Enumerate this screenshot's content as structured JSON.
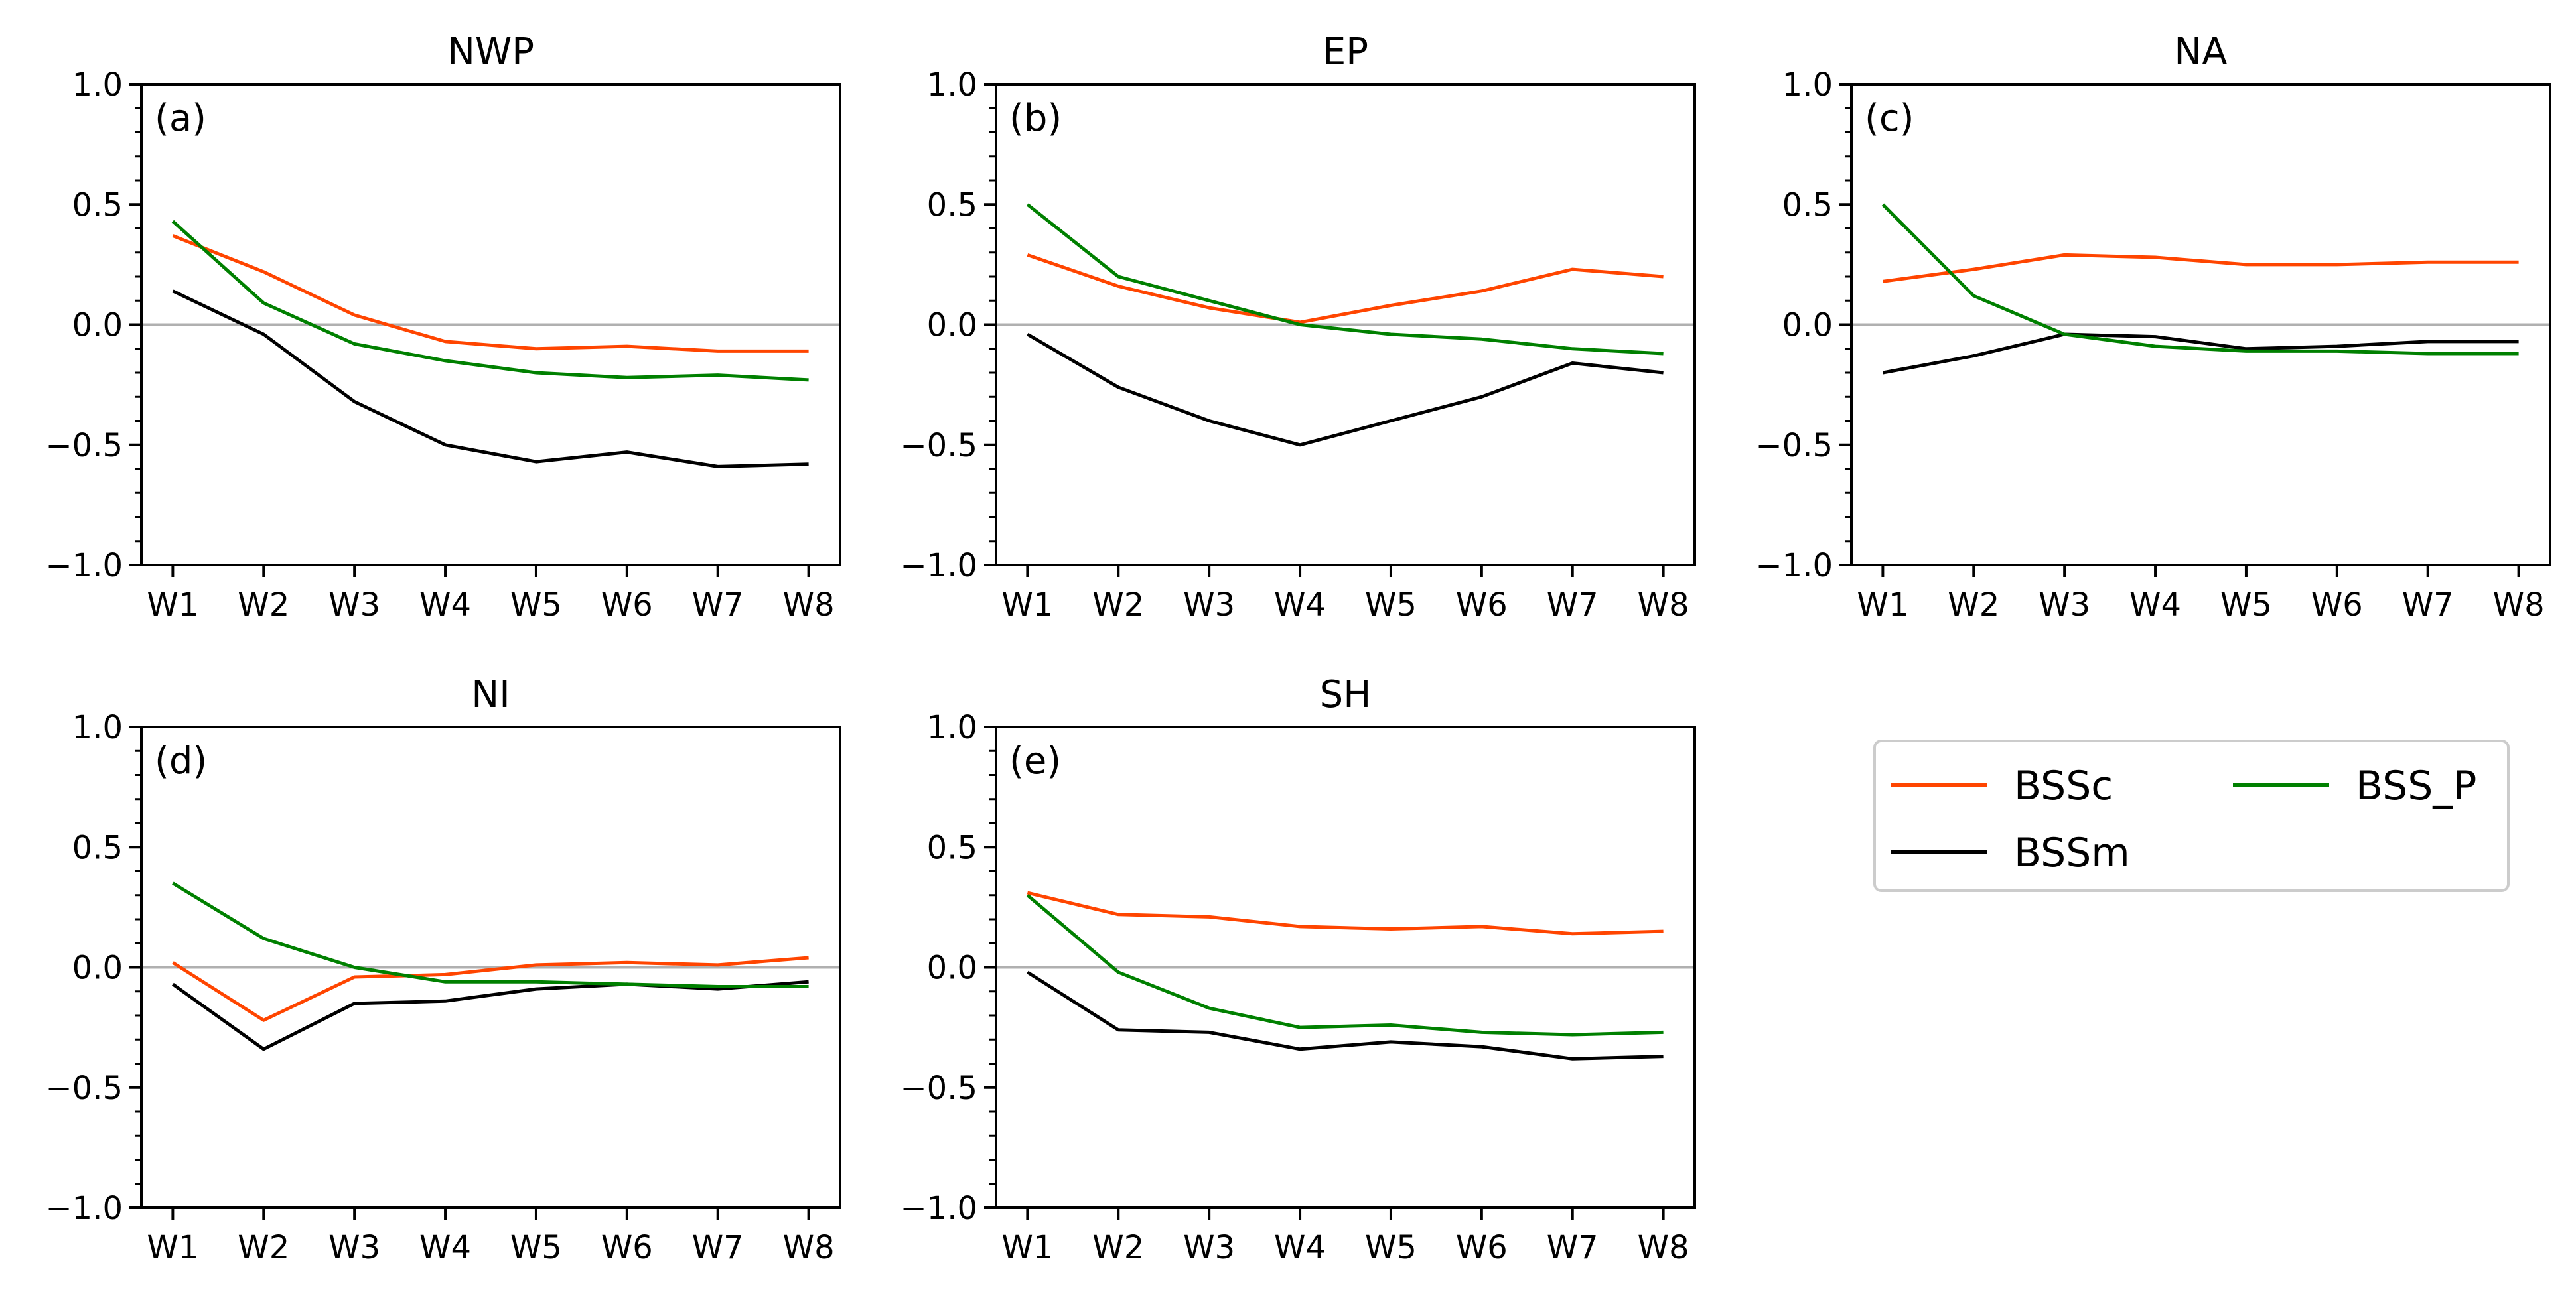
{
  "colors": {
    "BSSc": "#ff4500",
    "BSSm": "#000000",
    "BSS_P": "#008000",
    "zero_line": "#b0b0b0"
  },
  "legend": {
    "entries": [
      "BSSc",
      "BSSm",
      "BSS_P"
    ]
  },
  "chart_data": [
    {
      "type": "line",
      "title": "NWP",
      "panel_label": "(a)",
      "categories": [
        "W1",
        "W2",
        "W3",
        "W4",
        "W5",
        "W6",
        "W7",
        "W8"
      ],
      "ylim": [
        -1.0,
        1.0
      ],
      "yticks": [
        "1.0",
        "0.5",
        "0.0",
        "−0.5",
        "−1.0"
      ],
      "series": [
        {
          "name": "BSSc",
          "values": [
            0.37,
            0.22,
            0.04,
            -0.07,
            -0.1,
            -0.09,
            -0.11,
            -0.11
          ]
        },
        {
          "name": "BSSm",
          "values": [
            0.14,
            -0.04,
            -0.32,
            -0.5,
            -0.57,
            -0.53,
            -0.59,
            -0.58
          ]
        },
        {
          "name": "BSS_P",
          "values": [
            0.43,
            0.09,
            -0.08,
            -0.15,
            -0.2,
            -0.22,
            -0.21,
            -0.23
          ]
        }
      ]
    },
    {
      "type": "line",
      "title": "EP",
      "panel_label": "(b)",
      "categories": [
        "W1",
        "W2",
        "W3",
        "W4",
        "W5",
        "W6",
        "W7",
        "W8"
      ],
      "ylim": [
        -1.0,
        1.0
      ],
      "yticks": [
        "1.0",
        "0.5",
        "0.0",
        "−0.5",
        "−1.0"
      ],
      "series": [
        {
          "name": "BSSc",
          "values": [
            0.29,
            0.16,
            0.07,
            0.01,
            0.08,
            0.14,
            0.23,
            0.2
          ]
        },
        {
          "name": "BSSm",
          "values": [
            -0.04,
            -0.26,
            -0.4,
            -0.5,
            -0.4,
            -0.3,
            -0.16,
            -0.2
          ]
        },
        {
          "name": "BSS_P",
          "values": [
            0.5,
            0.2,
            0.1,
            0.0,
            -0.04,
            -0.06,
            -0.1,
            -0.12
          ]
        }
      ]
    },
    {
      "type": "line",
      "title": "NA",
      "panel_label": "(c)",
      "categories": [
        "W1",
        "W2",
        "W3",
        "W4",
        "W5",
        "W6",
        "W7",
        "W8"
      ],
      "ylim": [
        -1.0,
        1.0
      ],
      "yticks": [
        "1.0",
        "0.5",
        "0.0",
        "−0.5",
        "−1.0"
      ],
      "series": [
        {
          "name": "BSSc",
          "values": [
            0.18,
            0.23,
            0.29,
            0.28,
            0.25,
            0.25,
            0.26,
            0.26
          ]
        },
        {
          "name": "BSSm",
          "values": [
            -0.2,
            -0.13,
            -0.04,
            -0.05,
            -0.1,
            -0.09,
            -0.07,
            -0.07
          ]
        },
        {
          "name": "BSS_P",
          "values": [
            0.5,
            0.12,
            -0.04,
            -0.09,
            -0.11,
            -0.11,
            -0.12,
            -0.12
          ]
        }
      ]
    },
    {
      "type": "line",
      "title": "NI",
      "panel_label": "(d)",
      "categories": [
        "W1",
        "W2",
        "W3",
        "W4",
        "W5",
        "W6",
        "W7",
        "W8"
      ],
      "ylim": [
        -1.0,
        1.0
      ],
      "yticks": [
        "1.0",
        "0.5",
        "0.0",
        "−0.5",
        "−1.0"
      ],
      "series": [
        {
          "name": "BSSc",
          "values": [
            0.02,
            -0.22,
            -0.04,
            -0.03,
            0.01,
            0.02,
            0.01,
            0.04
          ]
        },
        {
          "name": "BSSm",
          "values": [
            -0.07,
            -0.34,
            -0.15,
            -0.14,
            -0.09,
            -0.07,
            -0.09,
            -0.06
          ]
        },
        {
          "name": "BSS_P",
          "values": [
            0.35,
            0.12,
            0.0,
            -0.06,
            -0.06,
            -0.07,
            -0.08,
            -0.08
          ]
        }
      ]
    },
    {
      "type": "line",
      "title": "SH",
      "panel_label": "(e)",
      "categories": [
        "W1",
        "W2",
        "W3",
        "W4",
        "W5",
        "W6",
        "W7",
        "W8"
      ],
      "ylim": [
        -1.0,
        1.0
      ],
      "yticks": [
        "1.0",
        "0.5",
        "0.0",
        "−0.5",
        "−1.0"
      ],
      "series": [
        {
          "name": "BSSc",
          "values": [
            0.31,
            0.22,
            0.21,
            0.17,
            0.16,
            0.17,
            0.14,
            0.15
          ]
        },
        {
          "name": "BSSm",
          "values": [
            -0.02,
            -0.26,
            -0.27,
            -0.34,
            -0.31,
            -0.33,
            -0.38,
            -0.37
          ]
        },
        {
          "name": "BSS_P",
          "values": [
            0.3,
            -0.02,
            -0.17,
            -0.25,
            -0.24,
            -0.27,
            -0.28,
            -0.27
          ]
        }
      ]
    }
  ]
}
